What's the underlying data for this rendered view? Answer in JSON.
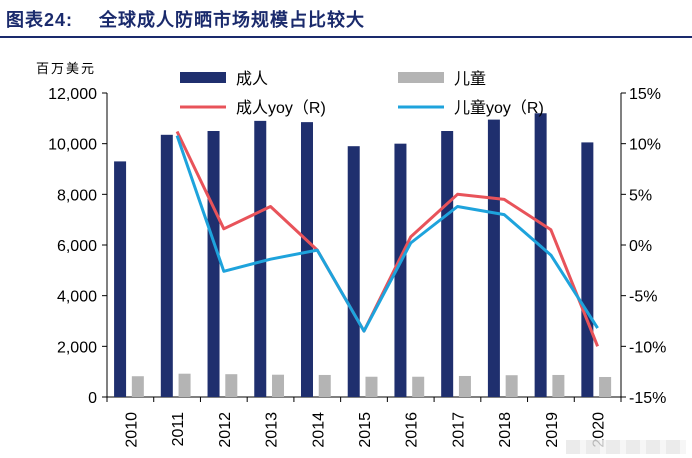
{
  "header": {
    "figure_label": "图表24:",
    "title": "全球成人防晒市场规模占比较大"
  },
  "chart_data": {
    "type": "bar",
    "title": "全球成人防晒市场规模占比较大",
    "unit_label": "百万美元",
    "categories": [
      "2010",
      "2011",
      "2012",
      "2013",
      "2014",
      "2015",
      "2016",
      "2017",
      "2018",
      "2019",
      "2020"
    ],
    "bar_series": [
      {
        "name": "成人",
        "color": "#1f2f6e",
        "values": [
          9300,
          10350,
          10500,
          10900,
          10850,
          9900,
          10000,
          10500,
          10950,
          11200,
          10050
        ]
      },
      {
        "name": "儿童",
        "color": "#b4b4b4",
        "values": [
          820,
          920,
          900,
          880,
          870,
          800,
          800,
          830,
          860,
          870,
          790
        ]
      }
    ],
    "line_series": [
      {
        "name": "成人yoy（R)",
        "color": "#e8535a",
        "axis": "right",
        "values": [
          null,
          11.2,
          1.6,
          3.8,
          -0.5,
          -8.5,
          0.8,
          5.0,
          4.5,
          1.5,
          -10.0
        ]
      },
      {
        "name": "儿童yoy（R)",
        "color": "#1ea3dc",
        "axis": "right",
        "values": [
          null,
          10.8,
          -2.6,
          -1.4,
          -0.5,
          -8.5,
          0.2,
          3.8,
          3.0,
          -1.0,
          -8.2
        ]
      }
    ],
    "y_left": {
      "range": [
        0,
        12000
      ],
      "ticks": [
        "0",
        "2,000",
        "4,000",
        "6,000",
        "8,000",
        "10,000",
        "12,000"
      ],
      "tick_values": [
        0,
        2000,
        4000,
        6000,
        8000,
        10000,
        12000
      ]
    },
    "y_right": {
      "range": [
        -15,
        15
      ],
      "ticks": [
        "-15%",
        "-10%",
        "-5%",
        "0%",
        "5%",
        "10%",
        "15%"
      ],
      "tick_values": [
        -15,
        -10,
        -5,
        0,
        5,
        10,
        15
      ]
    },
    "grid": false,
    "legend_placement": "top"
  }
}
